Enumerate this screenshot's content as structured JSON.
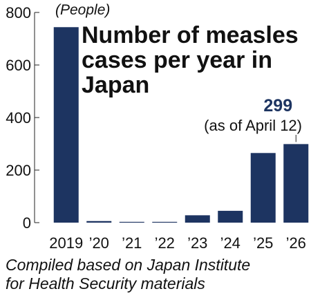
{
  "chart_data": {
    "type": "bar",
    "title": [
      "Number of measles",
      "cases per year in",
      "Japan"
    ],
    "unit_label": "(People)",
    "categories": [
      "2019",
      "’20",
      "’21",
      "’22",
      "’23",
      "’24",
      "’25",
      "’26"
    ],
    "values": [
      744,
      6,
      3,
      3,
      28,
      45,
      265,
      299
    ],
    "ylim": [
      0,
      800
    ],
    "yticks": [
      0,
      200,
      400,
      600,
      800
    ],
    "grid": false,
    "bar_color": "#1d3461",
    "annotation": {
      "category": "’26",
      "value_text": "299",
      "note": "(as of April 12)",
      "value_color": "#1d3461"
    }
  },
  "source": {
    "lines": [
      "Compiled based on Japan Institute",
      "for Health Security materials"
    ]
  }
}
